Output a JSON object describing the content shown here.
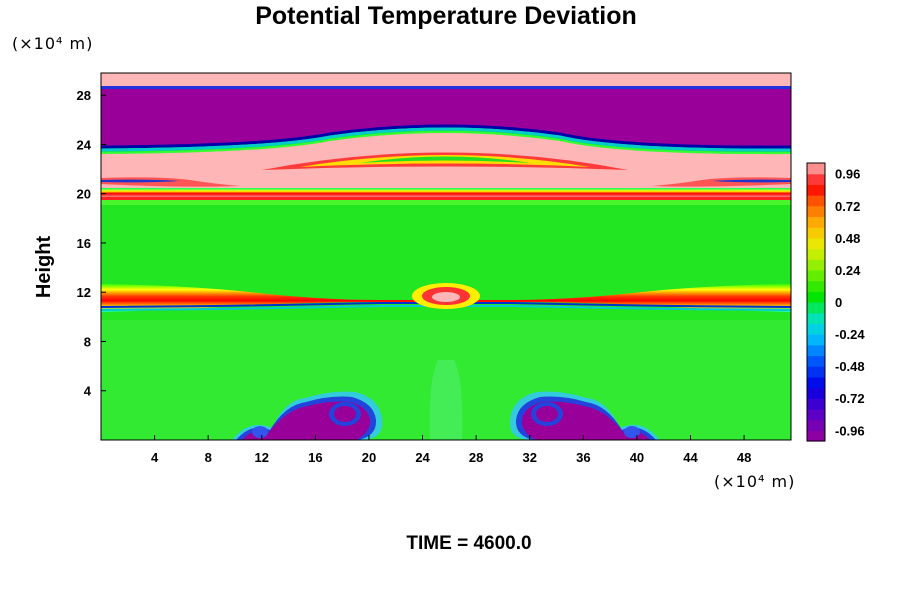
{
  "chart_data": {
    "type": "heatmap",
    "title": "Potential Temperature Deviation",
    "ylabel": "Height",
    "xlabel": "",
    "x_unit_label": "(×10⁴ m)",
    "y_unit_label": "(×10⁴ m)",
    "footer": "TIME = 4600.0",
    "xlim": [
      0,
      51.5
    ],
    "ylim": [
      0,
      29.8
    ],
    "x_ticks": [
      4,
      8,
      12,
      16,
      20,
      24,
      28,
      32,
      36,
      40,
      44,
      48
    ],
    "y_ticks": [
      4,
      8,
      12,
      16,
      20,
      24,
      28
    ],
    "colorbar": {
      "tick_labels": [
        "0.96",
        "0.72",
        "0.48",
        "0.24",
        "0",
        "-0.24",
        "-0.48",
        "-0.72",
        "-0.96"
      ],
      "tick_values": [
        0.96,
        0.72,
        0.48,
        0.24,
        0,
        -0.24,
        -0.48,
        -0.72,
        -0.96
      ],
      "range": [
        -1.04,
        1.04
      ],
      "levels": 26
    },
    "field_regions": [
      {
        "desc": "background",
        "y": [
          0,
          19.8
        ],
        "value": 0
      },
      {
        "desc": "warm band",
        "y": [
          19.8,
          21.2
        ],
        "value": 1.0
      },
      {
        "desc": "warm layer",
        "y": [
          21.2,
          23.6
        ],
        "value": 1.0
      },
      {
        "desc": "cold layer",
        "y": [
          23.6,
          28.6
        ],
        "value": -1.0
      },
      {
        "desc": "warm cap",
        "y": [
          28.6,
          29.8
        ],
        "value": 1.0
      },
      {
        "desc": "warm tongue",
        "y": [
          11.6,
          12.4
        ],
        "value": 0.8
      },
      {
        "desc": "warm bump",
        "x": 25.8,
        "y": 12.2,
        "value": 0.96
      },
      {
        "desc": "cold vortex",
        "x": 18.0,
        "y": 2.0,
        "value": -1.0
      },
      {
        "desc": "cold vortex",
        "x": 34.3,
        "y": 2.0,
        "value": -1.0
      }
    ],
    "colors": {
      "max": "#ffb6b6",
      "min": "#990099",
      "neutral": "#00e600"
    }
  }
}
